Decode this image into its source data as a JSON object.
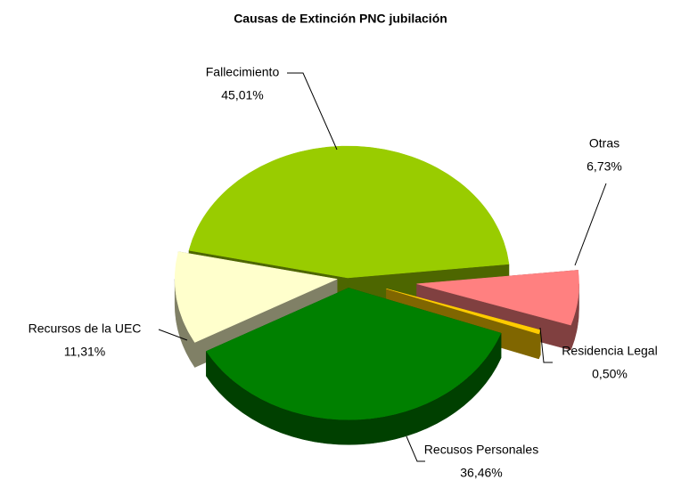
{
  "chart_data": {
    "type": "pie3d",
    "title": "Causas de Extinción PNC jubilación",
    "categories": [
      "Fallecimiento",
      "Otras",
      "Residencia Legal",
      "Recusos Personales",
      "Recursos de la UEC"
    ],
    "values": [
      45.01,
      6.73,
      0.5,
      36.46,
      11.31
    ],
    "value_labels": [
      "45,01%",
      "6,73%",
      "0,50%",
      "36,46%",
      "11,31%"
    ],
    "colors": [
      "#99cc00",
      "#ff8080",
      "#ffcc00",
      "#008000",
      "#ffffcc"
    ]
  }
}
